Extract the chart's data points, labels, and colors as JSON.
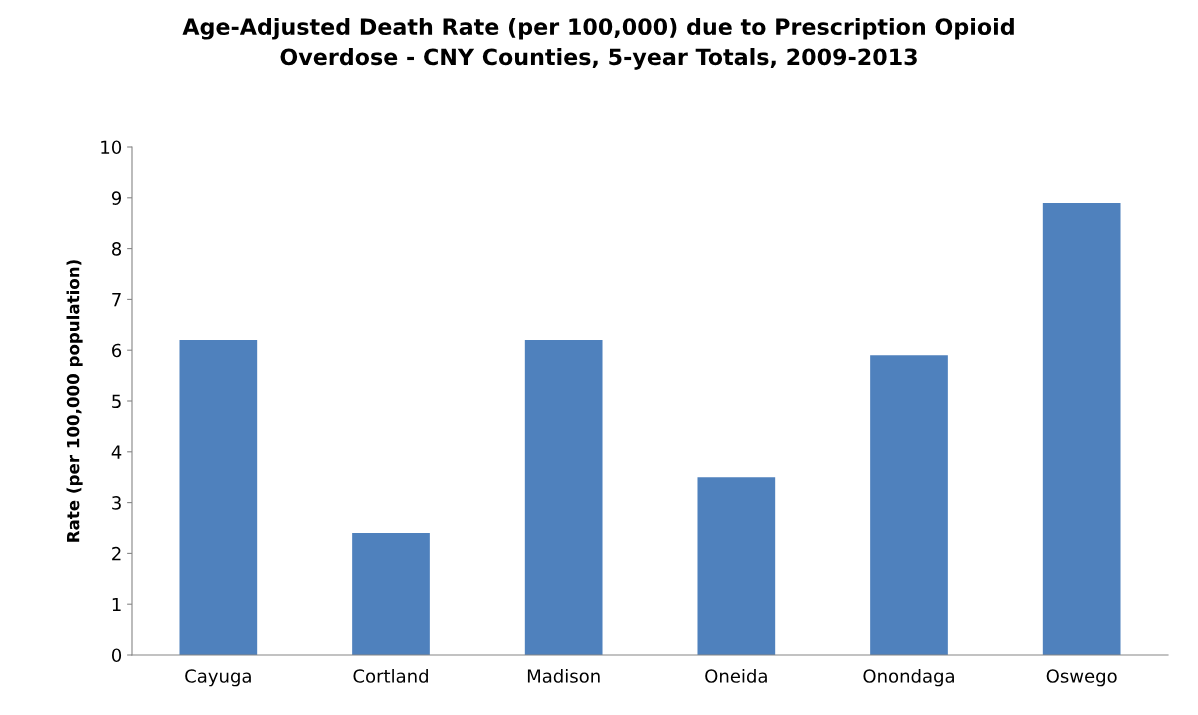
{
  "chart_data": {
    "type": "bar",
    "title": "Age-Adjusted Death Rate (per 100,000) due to Prescription Opioid\nOverdose - CNY Counties, 5-year Totals, 2009-2013",
    "ylabel": "Rate (per 100,000 population)",
    "categories": [
      "Cayuga",
      "Cortland",
      "Madison",
      "Oneida",
      "Onondaga",
      "Oswego"
    ],
    "values": [
      6.2,
      2.4,
      6.2,
      3.5,
      5.9,
      8.9
    ],
    "color": "#4f81bd",
    "ylim": [
      0,
      10
    ],
    "yticks": [
      0,
      1,
      2,
      3,
      4,
      5,
      6,
      7,
      8,
      9,
      10
    ],
    "grid": false,
    "legend": false
  }
}
